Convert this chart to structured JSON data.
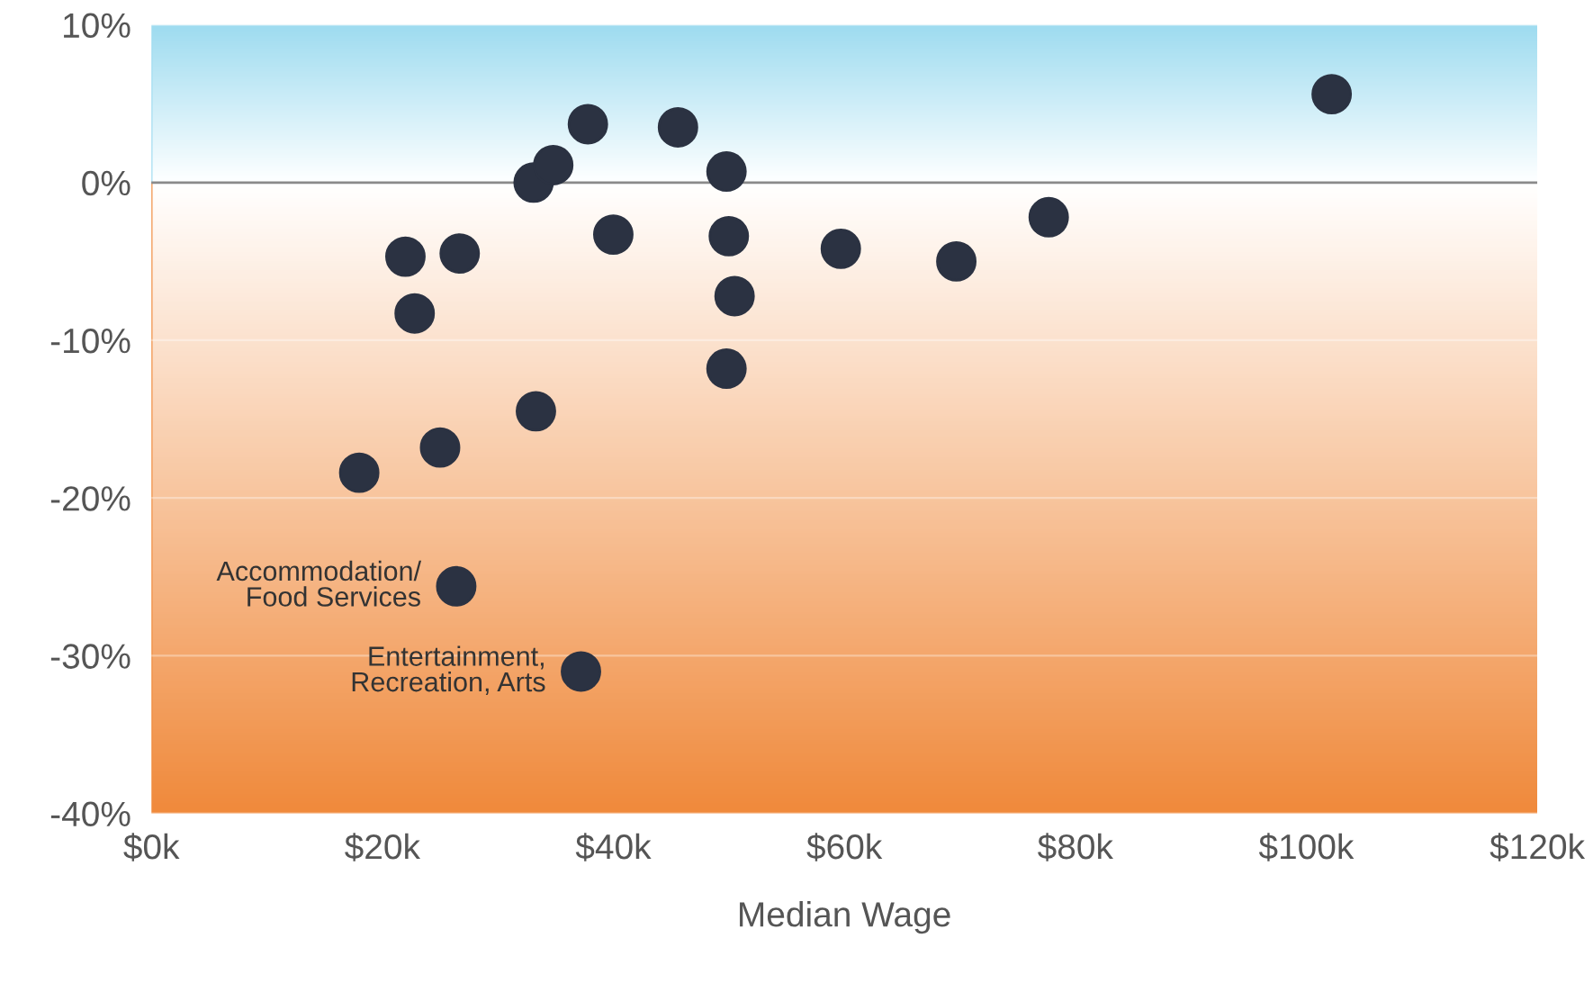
{
  "chart_data": {
    "type": "scatter",
    "xlabel": "Median Wage",
    "x": [
      102.2,
      37.8,
      45.6,
      49.8,
      33.1,
      34.8,
      22,
      26.7,
      40,
      50,
      59.7,
      69.7,
      77.7,
      50.5,
      22.8,
      49.8,
      33.3,
      25,
      18,
      26.4,
      37.2
    ],
    "values": [
      5.6,
      3.7,
      3.5,
      0.7,
      0,
      1.1,
      -4.7,
      -4.5,
      -3.3,
      -3.4,
      -4.2,
      -5.0,
      -2.2,
      -7.2,
      -8.3,
      -11.8,
      -14.5,
      -16.8,
      -18.4,
      -25.6,
      -31
    ],
    "color": "#2b3242",
    "marker": "circle",
    "xlim": [
      0,
      120
    ],
    "xticks": [
      {
        "value": 0,
        "label": "$0k"
      },
      {
        "value": 20,
        "label": "$20k"
      },
      {
        "value": 40,
        "label": "$40k"
      },
      {
        "value": 60,
        "label": "$60k"
      },
      {
        "value": 80,
        "label": "$80k"
      },
      {
        "value": 100,
        "label": "$100k"
      },
      {
        "value": 120,
        "label": "$120k"
      }
    ],
    "ylim": [
      -40,
      10
    ],
    "yticks": [
      {
        "value": -40,
        "label": "-40%"
      },
      {
        "value": -30,
        "label": "-30%"
      },
      {
        "value": -20,
        "label": "-20%"
      },
      {
        "value": -10,
        "label": "-10%"
      },
      {
        "value": 0,
        "label": "0%"
      },
      {
        "value": 10,
        "label": "10%"
      }
    ],
    "grid": "y",
    "ref_lines": [
      {
        "axis": "y",
        "value": 0,
        "color": "#8a8a8a"
      }
    ],
    "bands": [
      {
        "axis": "y",
        "from": 0,
        "to": 10,
        "color": "#9fdcf0"
      },
      {
        "axis": "y",
        "from": -40,
        "to": 0,
        "color": "#f08a3c"
      }
    ],
    "annotations": [
      {
        "text": "Accommodation/\nFood Services",
        "x": 26.4,
        "y": -25.6
      },
      {
        "text": "Entertainment,\nRecreation, Arts",
        "x": 37.2,
        "y": -31
      }
    ]
  }
}
